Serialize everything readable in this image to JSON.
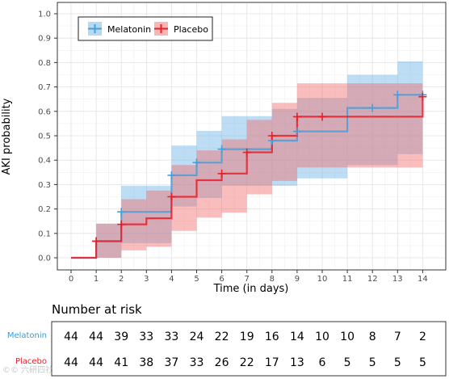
{
  "chart_data": {
    "type": "line",
    "subtype": "kaplan-meier cumulative incidence",
    "xlabel": "Time (in days)",
    "ylabel": "AKI probability",
    "xlim": [
      0,
      14
    ],
    "ylim": [
      0,
      1.0
    ],
    "x_ticks": [
      0,
      1,
      2,
      3,
      4,
      5,
      6,
      7,
      8,
      9,
      10,
      11,
      12,
      13,
      14
    ],
    "y_ticks": [
      0.0,
      0.1,
      0.2,
      0.3,
      0.4,
      0.5,
      0.6,
      0.7,
      0.8,
      0.9,
      1.0
    ],
    "y_tick_labels": [
      "0.0",
      "0.1",
      "0.2",
      "0.3",
      "0.4",
      "0.5",
      "0.6",
      "0.7",
      "0.8",
      "0.9",
      "1.0"
    ],
    "grid": true,
    "legend_position": "top-left",
    "series": [
      {
        "name": "Melatonin",
        "color": "#4a9fd8",
        "band_color": "#6ab4e6",
        "steps": [
          [
            0,
            0
          ],
          [
            1,
            0.068
          ],
          [
            2,
            0.188
          ],
          [
            4,
            0.338
          ],
          [
            5,
            0.39
          ],
          [
            6,
            0.445
          ],
          [
            8,
            0.48
          ],
          [
            9,
            0.518
          ],
          [
            11,
            0.614
          ],
          [
            13,
            0.668
          ],
          [
            14,
            0.668
          ]
        ],
        "ci_lower": [
          [
            0,
            0
          ],
          [
            1,
            0
          ],
          [
            2,
            0.06
          ],
          [
            4,
            0.21
          ],
          [
            5,
            0.245
          ],
          [
            6,
            0.295
          ],
          [
            8,
            0.295
          ],
          [
            9,
            0.325
          ],
          [
            11,
            0.38
          ],
          [
            13,
            0.425
          ],
          [
            14,
            0.425
          ]
        ],
        "ci_upper": [
          [
            0,
            0
          ],
          [
            1,
            0.14
          ],
          [
            2,
            0.295
          ],
          [
            4,
            0.46
          ],
          [
            5,
            0.52
          ],
          [
            6,
            0.58
          ],
          [
            8,
            0.61
          ],
          [
            9,
            0.655
          ],
          [
            11,
            0.75
          ],
          [
            13,
            0.805
          ],
          [
            14,
            0.805
          ]
        ],
        "censor_marks": [
          [
            1,
            0.068
          ],
          [
            2,
            0.188
          ],
          [
            4,
            0.338
          ],
          [
            5,
            0.39
          ],
          [
            6,
            0.445
          ],
          [
            8,
            0.48
          ],
          [
            9,
            0.518
          ],
          [
            12,
            0.614
          ],
          [
            13,
            0.668
          ],
          [
            14,
            0.668
          ]
        ]
      },
      {
        "name": "Placebo",
        "color": "#e8202a",
        "band_color": "#f26d6d",
        "steps": [
          [
            0,
            0
          ],
          [
            1,
            0.068
          ],
          [
            2,
            0.137
          ],
          [
            3,
            0.162
          ],
          [
            4,
            0.25
          ],
          [
            5,
            0.318
          ],
          [
            6,
            0.345
          ],
          [
            7,
            0.432
          ],
          [
            8,
            0.5
          ],
          [
            9,
            0.578
          ],
          [
            14,
            0.578
          ],
          [
            14,
            0.66
          ]
        ],
        "ci_lower": [
          [
            0,
            0
          ],
          [
            1,
            0
          ],
          [
            2,
            0.03
          ],
          [
            3,
            0.045
          ],
          [
            4,
            0.11
          ],
          [
            5,
            0.165
          ],
          [
            6,
            0.185
          ],
          [
            7,
            0.26
          ],
          [
            8,
            0.315
          ],
          [
            9,
            0.37
          ],
          [
            11,
            0.37
          ],
          [
            14,
            0.37
          ]
        ],
        "ci_upper": [
          [
            0,
            0
          ],
          [
            1,
            0.14
          ],
          [
            2,
            0.24
          ],
          [
            3,
            0.275
          ],
          [
            4,
            0.38
          ],
          [
            5,
            0.44
          ],
          [
            6,
            0.485
          ],
          [
            7,
            0.565
          ],
          [
            8,
            0.635
          ],
          [
            9,
            0.715
          ],
          [
            11,
            0.715
          ],
          [
            14,
            0.715
          ]
        ],
        "censor_marks": [
          [
            1,
            0.068
          ],
          [
            2,
            0.137
          ],
          [
            4,
            0.25
          ],
          [
            6,
            0.345
          ],
          [
            7,
            0.432
          ],
          [
            8,
            0.5
          ],
          [
            9,
            0.578
          ],
          [
            10,
            0.578
          ],
          [
            14,
            0.66
          ]
        ]
      }
    ],
    "risk_table": {
      "title": "Number at risk",
      "times": [
        0,
        1,
        2,
        3,
        4,
        5,
        6,
        7,
        8,
        9,
        10,
        11,
        12,
        13,
        14
      ],
      "rows": [
        {
          "name": "Melatonin",
          "color": "#2f9fd8",
          "values": [
            44,
            44,
            39,
            33,
            33,
            24,
            22,
            19,
            16,
            14,
            10,
            10,
            8,
            7,
            2
          ]
        },
        {
          "name": "Placebo",
          "color": "#e8202a",
          "values": [
            44,
            44,
            41,
            38,
            37,
            33,
            26,
            22,
            17,
            13,
            6,
            5,
            5,
            5,
            5
          ]
        }
      ]
    }
  },
  "watermark": "©© 六研四社"
}
